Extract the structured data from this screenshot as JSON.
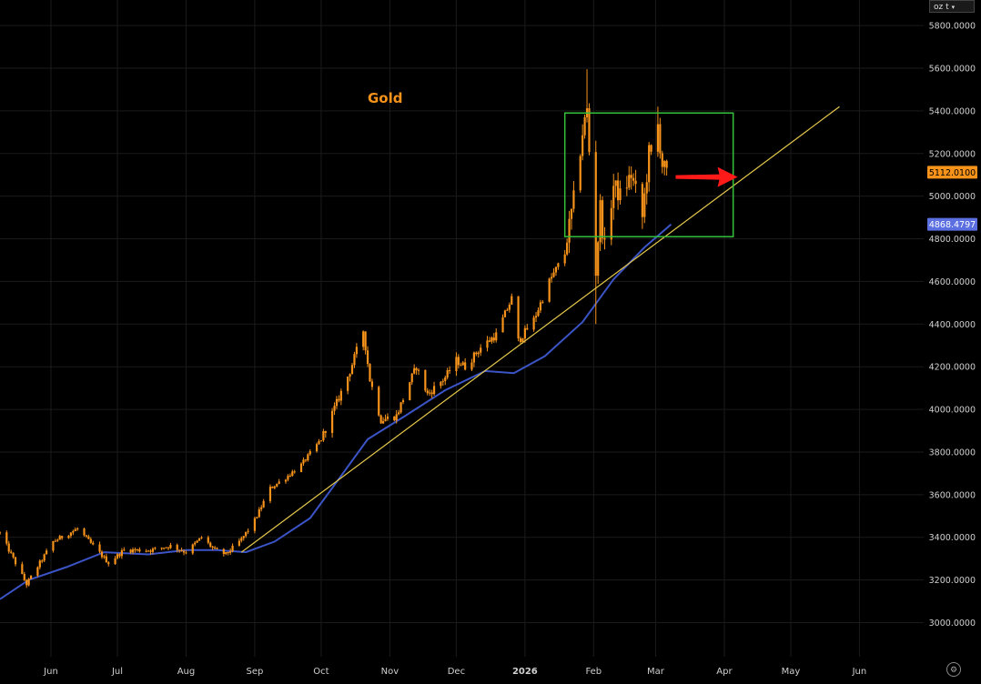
{
  "chart_data": {
    "type": "candlestick",
    "title": "Gold",
    "unit": "oz t",
    "y_axis": {
      "ylim": [
        2840,
        5920
      ],
      "tick_values": [
        3000,
        3200,
        3400,
        3600,
        3800,
        4000,
        4200,
        4400,
        4600,
        4800,
        5000,
        5200,
        5400,
        5600,
        5800
      ],
      "tick_labels": [
        "3000.0000",
        "3200.0000",
        "3400.0000",
        "3600.0000",
        "3800.0000",
        "4000.0000",
        "4200.0000",
        "4400.0000",
        "4600.0000",
        "4800.0000",
        "5000.0000",
        "5200.0000",
        "5400.0000",
        "5600.0000",
        "5800.0000"
      ]
    },
    "x_axis": {
      "xlim": [
        "2025-05-09",
        "2026-06-30"
      ],
      "ticks": [
        {
          "date": "2025-06-01",
          "label": "Jun"
        },
        {
          "date": "2025-07-01",
          "label": "Jul"
        },
        {
          "date": "2025-08-01",
          "label": "Aug"
        },
        {
          "date": "2025-09-01",
          "label": "Sep"
        },
        {
          "date": "2025-10-01",
          "label": "Oct"
        },
        {
          "date": "2025-11-01",
          "label": "Nov"
        },
        {
          "date": "2025-12-01",
          "label": "Dec"
        },
        {
          "date": "2026-01-01",
          "label": "2026",
          "bold": true
        },
        {
          "date": "2026-02-01",
          "label": "Feb"
        },
        {
          "date": "2026-03-01",
          "label": "Mar"
        },
        {
          "date": "2026-04-01",
          "label": "Apr"
        },
        {
          "date": "2026-05-01",
          "label": "May"
        },
        {
          "date": "2026-06-01",
          "label": "Jun"
        }
      ]
    },
    "grid": true,
    "series": [
      {
        "type": "candlestick",
        "color": "#f7931a",
        "path": [
          [
            "2025-05-09",
            3420
          ],
          [
            "2025-05-21",
            3180
          ],
          [
            "2025-06-02",
            3380
          ],
          [
            "2025-06-13",
            3440
          ],
          [
            "2025-06-27",
            3280
          ],
          [
            "2025-07-04",
            3340
          ],
          [
            "2025-07-16",
            3340
          ],
          [
            "2025-07-25",
            3360
          ],
          [
            "2025-08-01",
            3330
          ],
          [
            "2025-08-08",
            3400
          ],
          [
            "2025-08-14",
            3340
          ],
          [
            "2025-08-19",
            3320
          ],
          [
            "2025-08-26",
            3390
          ],
          [
            "2025-09-01",
            3480
          ],
          [
            "2025-09-08",
            3630
          ],
          [
            "2025-09-15",
            3680
          ],
          [
            "2025-09-22",
            3740
          ],
          [
            "2025-10-01",
            3860
          ],
          [
            "2025-10-08",
            4030
          ],
          [
            "2025-10-14",
            4180
          ],
          [
            "2025-10-20",
            4370
          ],
          [
            "2025-10-23",
            4140
          ],
          [
            "2025-10-28",
            3950
          ],
          [
            "2025-11-04",
            3970
          ],
          [
            "2025-11-10",
            4130
          ],
          [
            "2025-11-13",
            4200
          ],
          [
            "2025-11-18",
            4070
          ],
          [
            "2025-11-26",
            4150
          ],
          [
            "2025-12-01",
            4230
          ],
          [
            "2025-12-05",
            4200
          ],
          [
            "2025-12-12",
            4290
          ],
          [
            "2025-12-19",
            4350
          ],
          [
            "2025-12-26",
            4520
          ],
          [
            "2025-12-29",
            4320
          ],
          [
            "2026-01-05",
            4420
          ],
          [
            "2026-01-12",
            4600
          ],
          [
            "2026-01-19",
            4730
          ],
          [
            "2026-01-23",
            4980
          ],
          [
            "2026-01-27",
            5300
          ],
          [
            "2026-01-29",
            5400
          ],
          [
            "2026-02-02",
            4650
          ],
          [
            "2026-02-04",
            4950
          ],
          [
            "2026-02-06",
            4750
          ],
          [
            "2026-02-10",
            5050
          ],
          [
            "2026-02-13",
            5000
          ],
          [
            "2026-02-18",
            5100
          ],
          [
            "2026-02-23",
            4900
          ],
          [
            "2026-02-26",
            5200
          ],
          [
            "2026-02-28",
            5170
          ],
          [
            "2026-03-02",
            5330
          ],
          [
            "2026-03-04",
            5150
          ],
          [
            "2026-03-06",
            5100
          ],
          [
            "2026-03-08",
            5112
          ]
        ],
        "spikes": [
          {
            "date": "2026-01-29",
            "high": 5595
          },
          {
            "date": "2026-02-02",
            "low": 4400
          },
          {
            "date": "2026-03-02",
            "high": 5420
          }
        ],
        "last_value": "5112.0100"
      },
      {
        "type": "line",
        "name": "moving average",
        "color": "#3b54c6",
        "points": [
          [
            "2025-05-09",
            3110
          ],
          [
            "2025-05-22",
            3200
          ],
          [
            "2025-06-08",
            3260
          ],
          [
            "2025-06-25",
            3330
          ],
          [
            "2025-07-15",
            3320
          ],
          [
            "2025-08-01",
            3340
          ],
          [
            "2025-08-15",
            3340
          ],
          [
            "2025-08-28",
            3330
          ],
          [
            "2025-09-10",
            3380
          ],
          [
            "2025-09-26",
            3490
          ],
          [
            "2025-10-08",
            3660
          ],
          [
            "2025-10-22",
            3860
          ],
          [
            "2025-11-08",
            3970
          ],
          [
            "2025-11-26",
            4090
          ],
          [
            "2025-12-14",
            4180
          ],
          [
            "2025-12-27",
            4170
          ],
          [
            "2026-01-10",
            4250
          ],
          [
            "2026-01-27",
            4410
          ],
          [
            "2026-02-10",
            4610
          ],
          [
            "2026-02-24",
            4760
          ],
          [
            "2026-03-08",
            4868
          ]
        ],
        "last_value": "4868.4797"
      }
    ],
    "annotations": {
      "trendline": {
        "color": "#e5c84b",
        "from": [
          "2025-08-26",
          3330
        ],
        "to": [
          "2026-05-23",
          5420
        ]
      },
      "range_box": {
        "color": "#35c13b",
        "x": [
          "2026-01-19",
          "2026-04-05"
        ],
        "y": [
          4810,
          5390
        ]
      },
      "arrow": {
        "color": "#ff1a1a",
        "from": [
          "2026-03-10",
          5090
        ],
        "to": [
          "2026-04-07",
          5090
        ]
      }
    }
  },
  "toolbar": {
    "unit_label": "oz t",
    "settings_icon": "gear-icon"
  }
}
